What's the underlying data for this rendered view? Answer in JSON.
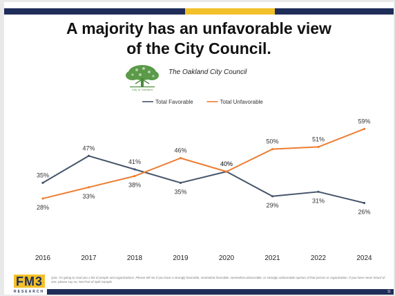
{
  "title": {
    "line1": "A majority has an unfavorable view",
    "line2": "of the City Council."
  },
  "subtitle": "The Oakland City Council",
  "logo_caption": "City of Oakland",
  "brand": {
    "name": "FM3",
    "tagline": "RESEARCH"
  },
  "footnote": "Q3a. I'm going to read you a list of people and organizations. Please tell me if you have a strongly favorable, somewhat favorable, somewhat unfavorable, or strongly unfavorable opinion of that person or organization. If you have never heard of one, please say so. Not Part of Split Sample",
  "slide_number": "11",
  "colors": {
    "navy": "#1f2d59",
    "gold": "#f2c02a",
    "favorable": "#44546a",
    "unfavorable": "#ed7d31",
    "logo_green": "#4a8a3a"
  },
  "chart_data": {
    "type": "line",
    "title": "",
    "xlabel": "",
    "ylabel": "",
    "categories": [
      "2016",
      "2017",
      "2018",
      "2019",
      "2020",
      "2021",
      "2022",
      "2024"
    ],
    "series": [
      {
        "name": "Total Favorable",
        "values": [
          35,
          47,
          41,
          35,
          40,
          29,
          31,
          26
        ],
        "labels": [
          "35%",
          "47%",
          "41%",
          "35%",
          "40%",
          "29%",
          "31%",
          "26%"
        ],
        "color": "#44546a"
      },
      {
        "name": "Total Unfavorable",
        "values": [
          28,
          33,
          38,
          46,
          40,
          50,
          51,
          59
        ],
        "labels": [
          "28%",
          "33%",
          "38%",
          "46%",
          "40%",
          "50%",
          "51%",
          "59%"
        ],
        "color": "#ed7d31"
      }
    ],
    "ylim": [
      20,
      65
    ],
    "grid": false,
    "legend_position": "top-center"
  }
}
